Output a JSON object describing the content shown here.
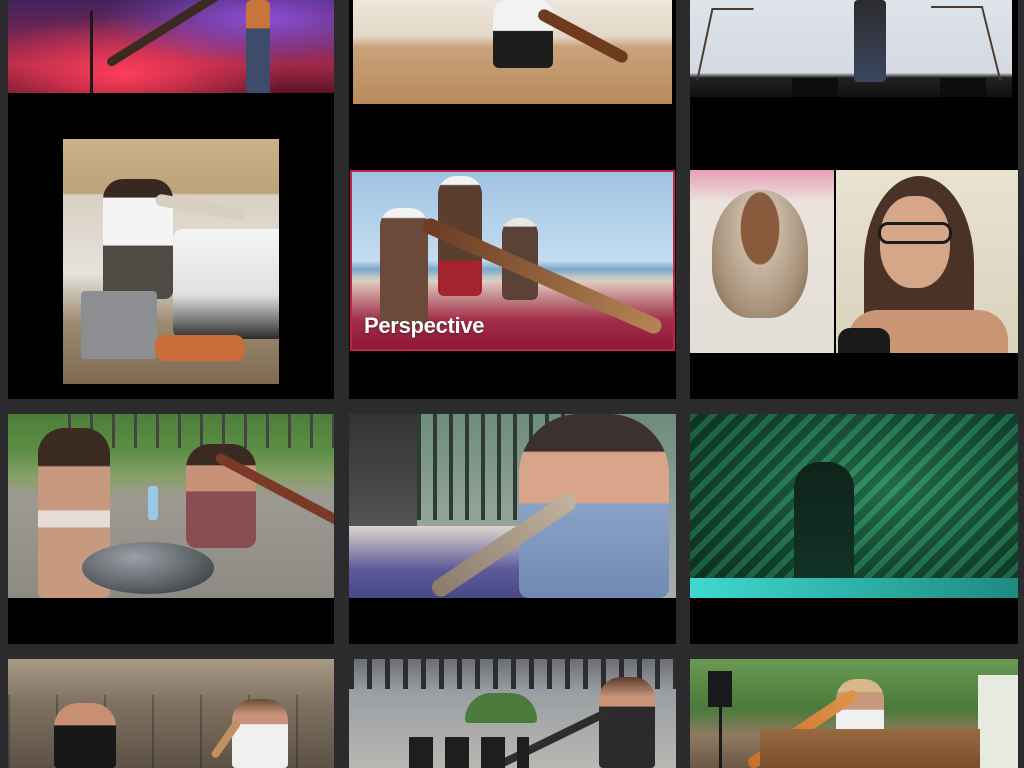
{
  "tiles": {
    "perspective_caption": "Perspective"
  },
  "colors": {
    "page_background": "#2b2b2e",
    "tile_background": "#000000",
    "highlight_border": "#c0244a"
  }
}
